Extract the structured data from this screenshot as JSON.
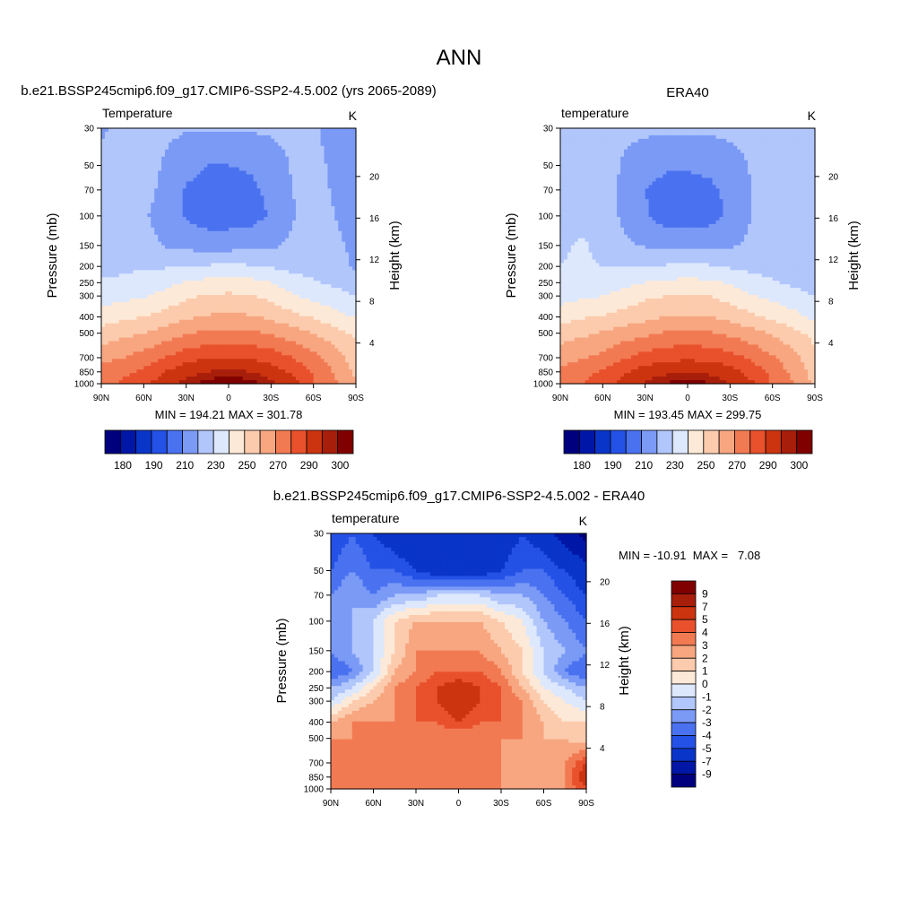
{
  "figure": {
    "title": "ANN"
  },
  "colors": {
    "temperature_scale": [
      "#00007f",
      "#0016a6",
      "#0a35c9",
      "#2451e6",
      "#4a72f0",
      "#7b9af6",
      "#b1c6fb",
      "#dde8fd",
      "#fde9d7",
      "#fccbad",
      "#f7a680",
      "#f27a52",
      "#e8512c",
      "#cc3410",
      "#a71e0a",
      "#800000"
    ],
    "difference_scale": [
      "#00007f",
      "#0016a6",
      "#0a35c9",
      "#2451e6",
      "#4a72f0",
      "#7b9af6",
      "#b1c6fb",
      "#dde8fd",
      "#fde9d7",
      "#fccbad",
      "#f7a680",
      "#f27a52",
      "#e8512c",
      "#cc3410",
      "#a71e0a",
      "#800000"
    ],
    "missing": "#ffffff"
  },
  "chart_data": [
    {
      "id": "model",
      "type": "heatmap",
      "title": "b.e21.BSSP245cmip6.f09_g17.CMIP6-SSP2-4.5.002 (yrs 2065-2089)",
      "left_label": "Temperature",
      "unit_label": "K",
      "ylabel": "Pressure (mb)",
      "y2label": "Height (km)",
      "x_ticks": [
        "90N",
        "60N",
        "30N",
        "0",
        "30S",
        "60S",
        "90S"
      ],
      "y_ticks": [
        1000,
        850,
        700,
        500,
        400,
        300,
        250,
        200,
        150,
        100,
        70,
        50,
        30
      ],
      "y2_ticks": [
        4,
        8,
        12,
        16,
        20
      ],
      "stats_label": "MIN = 194.21  MAX = 301.78",
      "colorbar_labels": [
        "180",
        "190",
        "210",
        "230",
        "250",
        "270",
        "290",
        "300"
      ],
      "colorbar_levels": [
        175,
        180,
        185,
        190,
        200,
        210,
        220,
        230,
        240,
        250,
        260,
        270,
        280,
        290,
        295,
        300
      ],
      "colorbar_orientation": "horizontal",
      "lat": [
        90,
        75,
        60,
        45,
        30,
        15,
        0,
        -15,
        -30,
        -45,
        -60,
        -75,
        -90
      ],
      "pressure": [
        30,
        50,
        70,
        100,
        150,
        200,
        250,
        300,
        400,
        500,
        700,
        850,
        1000
      ],
      "values": [
        [
          209,
          212,
          213,
          212,
          211,
          211,
          211,
          211,
          212,
          213,
          212,
          205,
          203
        ],
        [
          212,
          214,
          214,
          209,
          203,
          200,
          200,
          201,
          204,
          211,
          213,
          208,
          206
        ],
        [
          213,
          214,
          214,
          207,
          199,
          197,
          197,
          198,
          202,
          210,
          213,
          209,
          206
        ],
        [
          214,
          214,
          211,
          206,
          199,
          195,
          195,
          196,
          201,
          209,
          214,
          210,
          206
        ],
        [
          215,
          215,
          214,
          209,
          207,
          206,
          206,
          207,
          208,
          212,
          215,
          212,
          208
        ],
        [
          217,
          218,
          219,
          219,
          220,
          221,
          222,
          221,
          219,
          217,
          216,
          213,
          209
        ],
        [
          221,
          222,
          224,
          227,
          231,
          233,
          233,
          233,
          230,
          224,
          221,
          218,
          214
        ],
        [
          225,
          227,
          229,
          233,
          238,
          241,
          242,
          241,
          237,
          231,
          227,
          224,
          220
        ],
        [
          235,
          238,
          240,
          244,
          248,
          251,
          252,
          251,
          248,
          243,
          239,
          234,
          229
        ],
        [
          244,
          247,
          250,
          255,
          259,
          262,
          263,
          262,
          259,
          255,
          250,
          244,
          238
        ],
        [
          257,
          260,
          264,
          270,
          276,
          279,
          280,
          279,
          276,
          270,
          263,
          255,
          244
        ],
        [
          263,
          267,
          272,
          280,
          287,
          290,
          292,
          290,
          286,
          278,
          269,
          259,
          248
        ],
        [
          266,
          272,
          278,
          286,
          293,
          298,
          300,
          298,
          292,
          284,
          271,
          262,
          250
        ]
      ]
    },
    {
      "id": "obs",
      "type": "heatmap",
      "title": "ERA40",
      "left_label": "temperature",
      "unit_label": "K",
      "ylabel": "Pressure (mb)",
      "y2label": "Height (km)",
      "x_ticks": [
        "90N",
        "60N",
        "30N",
        "0",
        "30S",
        "60S",
        "90S"
      ],
      "y_ticks": [
        1000,
        850,
        700,
        500,
        400,
        300,
        250,
        200,
        150,
        100,
        70,
        50,
        30
      ],
      "y2_ticks": [
        4,
        8,
        12,
        16,
        20
      ],
      "stats_label": "MIN = 193.45  MAX = 299.75",
      "colorbar_labels": [
        "180",
        "190",
        "210",
        "230",
        "250",
        "270",
        "290",
        "300"
      ],
      "colorbar_levels": [
        175,
        180,
        185,
        190,
        200,
        210,
        220,
        230,
        240,
        250,
        260,
        270,
        280,
        290,
        295,
        300
      ],
      "colorbar_orientation": "horizontal",
      "lat": [
        90,
        75,
        60,
        45,
        30,
        15,
        0,
        -15,
        -30,
        -45,
        -60,
        -75,
        -90
      ],
      "pressure": [
        30,
        50,
        70,
        100,
        150,
        200,
        250,
        300,
        400,
        500,
        700,
        850,
        1000
      ],
      "values": [
        [
          212,
          213,
          213,
          212,
          212,
          212,
          212,
          212,
          213,
          214,
          214,
          216,
          214
        ],
        [
          214,
          215,
          214,
          209,
          204,
          201,
          201,
          202,
          205,
          211,
          214,
          215,
          212
        ],
        [
          215,
          216,
          214,
          208,
          200,
          197,
          197,
          198,
          202,
          210,
          214,
          215,
          212
        ],
        [
          216,
          218,
          216,
          208,
          201,
          195,
          195,
          196,
          202,
          210,
          215,
          214,
          211
        ],
        [
          219,
          221,
          218,
          212,
          209,
          208,
          208,
          208,
          209,
          212,
          215,
          213,
          210
        ],
        [
          220,
          221,
          220,
          220,
          220,
          221,
          222,
          221,
          219,
          217,
          216,
          213,
          210
        ],
        [
          222,
          223,
          224,
          227,
          230,
          232,
          233,
          232,
          229,
          224,
          221,
          218,
          214
        ],
        [
          226,
          228,
          230,
          234,
          238,
          240,
          241,
          240,
          236,
          231,
          227,
          224,
          220
        ],
        [
          236,
          239,
          241,
          244,
          247,
          250,
          251,
          250,
          247,
          242,
          238,
          233,
          228
        ],
        [
          245,
          248,
          251,
          255,
          258,
          261,
          262,
          261,
          258,
          254,
          249,
          243,
          237
        ],
        [
          256,
          259,
          263,
          269,
          274,
          277,
          278,
          277,
          274,
          268,
          261,
          253,
          242
        ],
        [
          262,
          266,
          271,
          278,
          285,
          288,
          289,
          288,
          284,
          276,
          267,
          257,
          246
        ],
        [
          264,
          270,
          276,
          284,
          291,
          296,
          298,
          296,
          290,
          282,
          269,
          260,
          248
        ]
      ]
    },
    {
      "id": "diff",
      "type": "heatmap",
      "title": "b.e21.BSSP245cmip6.f09_g17.CMIP6-SSP2-4.5.002 - ERA40",
      "left_label": "temperature",
      "unit_label": "K",
      "ylabel": "Pressure (mb)",
      "y2label": "Height (km)",
      "x_ticks": [
        "90N",
        "60N",
        "30N",
        "0",
        "30S",
        "60S",
        "90S"
      ],
      "y_ticks": [
        1000,
        850,
        700,
        500,
        400,
        300,
        250,
        200,
        150,
        100,
        70,
        50,
        30
      ],
      "y2_ticks": [
        4,
        8,
        12,
        16,
        20
      ],
      "stats_label": "MIN = -10.91  MAX =   7.08",
      "colorbar_labels": [
        "9",
        "7",
        "5",
        "4",
        "3",
        "2",
        "1",
        "0",
        "-1",
        "-2",
        "-3",
        "-4",
        "-5",
        "-7",
        "-9"
      ],
      "colorbar_levels": [
        -9,
        -7,
        -5,
        -4,
        -3,
        -2,
        -1,
        0,
        1,
        2,
        3,
        4,
        5,
        7,
        9
      ],
      "colorbar_orientation": "vertical",
      "lat": [
        90,
        75,
        60,
        45,
        30,
        15,
        0,
        -15,
        -30,
        -45,
        -60,
        -75,
        -90
      ],
      "pressure": [
        30,
        50,
        70,
        100,
        150,
        200,
        250,
        300,
        400,
        500,
        700,
        850,
        1000
      ],
      "values": [
        [
          -5,
          -4,
          -5,
          -6,
          -7,
          -7,
          -7,
          -7,
          -6,
          -5,
          -6,
          -8,
          -10
        ],
        [
          -4,
          -3,
          -4,
          -4,
          -5,
          -6,
          -6,
          -6,
          -5,
          -4,
          -4,
          -5,
          -6
        ],
        [
          -3,
          -2,
          -3,
          -2,
          -2,
          -1,
          -1,
          -1,
          -2,
          -2,
          -3,
          -4,
          -5
        ],
        [
          -2,
          -2,
          -1,
          1,
          2,
          2,
          2,
          2,
          1,
          0,
          -2,
          -3,
          -4
        ],
        [
          -3,
          -2,
          -1,
          1,
          3,
          3,
          3,
          3,
          2,
          1,
          -1,
          -2,
          -3
        ],
        [
          -4,
          -3,
          -1,
          2,
          3,
          4,
          4,
          4,
          3,
          1,
          -1,
          -3,
          -4
        ],
        [
          -2,
          -1,
          1,
          3,
          4,
          5,
          6,
          5,
          4,
          2,
          0,
          -1,
          -2
        ],
        [
          -1,
          1,
          2,
          3,
          4,
          5,
          6,
          5,
          4,
          3,
          1,
          0,
          -1
        ],
        [
          2,
          3,
          3,
          3,
          4,
          4,
          5,
          4,
          4,
          3,
          2,
          1,
          1
        ],
        [
          3,
          3,
          3,
          3,
          3,
          3,
          3,
          3,
          3,
          3,
          2,
          2,
          1
        ],
        [
          4,
          3,
          3,
          3,
          3,
          3,
          3,
          3,
          3,
          2,
          2,
          3,
          5
        ],
        [
          4,
          4,
          3,
          3,
          3,
          3,
          3,
          3,
          3,
          2,
          2,
          3,
          6
        ],
        [
          3,
          4,
          3,
          3,
          3,
          3,
          3,
          3,
          3,
          2,
          2,
          3,
          5
        ]
      ]
    }
  ]
}
